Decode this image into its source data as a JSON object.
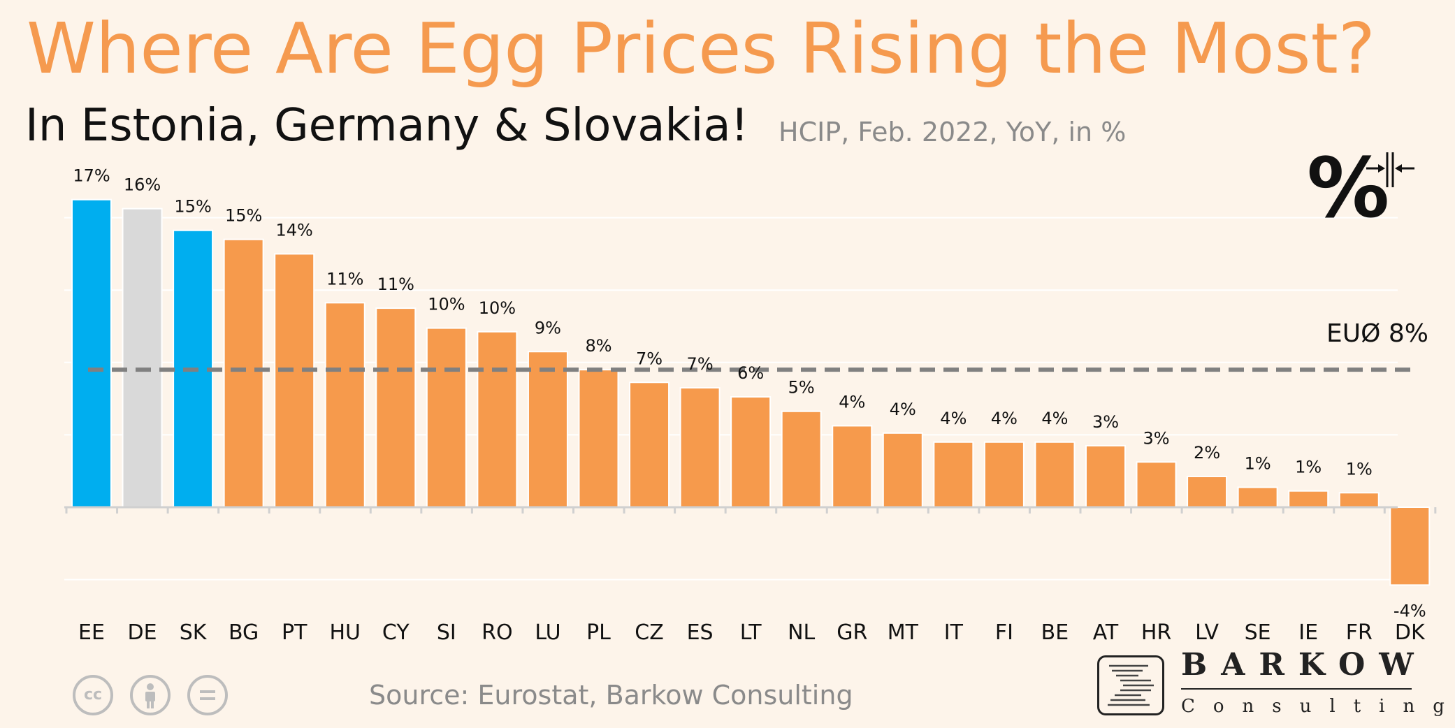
{
  "title": "Where Are Egg Prices Rising the Most?",
  "subtitle": "In Estonia, Germany & Slovakia!",
  "subnote": "HCIP, Feb. 2022, YoY, in %",
  "source": "Source: Eurostat, Barkow Consulting",
  "icon_glyph": "%",
  "license_icons": [
    "cc-icon",
    "attribution-icon",
    "no-derivatives-icon"
  ],
  "brand": {
    "name": "BARKOW",
    "sub": "Consulting"
  },
  "colors": {
    "background": "#fdf4ea",
    "orange": "#f69a4c",
    "blue": "#00aeef",
    "gray": "#d9d9d9",
    "title": "#f59a4f",
    "avg_line": "#808080"
  },
  "chart_data": {
    "type": "bar",
    "categories": [
      "EE",
      "DE",
      "SK",
      "BG",
      "PT",
      "HU",
      "CY",
      "SI",
      "RO",
      "LU",
      "PL",
      "CZ",
      "ES",
      "LT",
      "NL",
      "GR",
      "MT",
      "IT",
      "FI",
      "BE",
      "AT",
      "HR",
      "LV",
      "SE",
      "IE",
      "FR",
      "DK"
    ],
    "values": [
      17.0,
      16.5,
      15.3,
      14.8,
      14.0,
      11.3,
      11.0,
      9.9,
      9.7,
      8.6,
      7.6,
      6.9,
      6.6,
      6.1,
      5.3,
      4.5,
      4.1,
      3.6,
      3.6,
      3.6,
      3.4,
      2.5,
      1.7,
      1.1,
      0.9,
      0.8,
      -4.3
    ],
    "labels": [
      "17%",
      "16%",
      "15%",
      "15%",
      "14%",
      "11%",
      "11%",
      "10%",
      "10%",
      "9%",
      "8%",
      "7%",
      "7%",
      "6%",
      "5%",
      "4%",
      "4%",
      "4%",
      "4%",
      "4%",
      "3%",
      "3%",
      "2%",
      "1%",
      "1%",
      "1%",
      "-4%"
    ],
    "bar_colors": [
      "blue",
      "gray",
      "blue",
      "orange",
      "orange",
      "orange",
      "orange",
      "orange",
      "orange",
      "orange",
      "orange",
      "orange",
      "orange",
      "orange",
      "orange",
      "orange",
      "orange",
      "orange",
      "orange",
      "orange",
      "orange",
      "orange",
      "orange",
      "orange",
      "orange",
      "orange",
      "orange"
    ],
    "reference_line": {
      "value": 7.6,
      "label": "EUØ 8%"
    },
    "ylim": [
      -5,
      20
    ],
    "grid": true
  }
}
